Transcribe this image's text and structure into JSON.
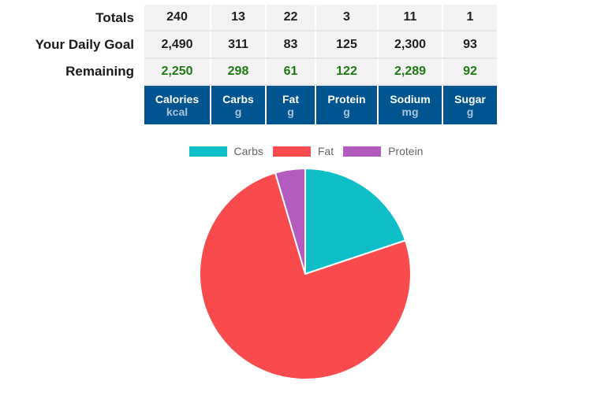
{
  "summary": {
    "rows": [
      {
        "label": "Totals",
        "values": [
          "240",
          "13",
          "22",
          "3",
          "11",
          "1"
        ]
      },
      {
        "label": "Your Daily Goal",
        "values": [
          "2,490",
          "311",
          "83",
          "125",
          "2,300",
          "93"
        ]
      },
      {
        "label": "Remaining",
        "values": [
          "2,250",
          "298",
          "61",
          "122",
          "2,289",
          "92"
        ]
      }
    ],
    "columns": [
      {
        "name": "Calories",
        "unit": "kcal"
      },
      {
        "name": "Carbs",
        "unit": "g"
      },
      {
        "name": "Fat",
        "unit": "g"
      },
      {
        "name": "Protein",
        "unit": "g"
      },
      {
        "name": "Sodium",
        "unit": "mg"
      },
      {
        "name": "Sugar",
        "unit": "g"
      }
    ],
    "colors": {
      "header_bg": "#00548f",
      "remaining_text": "#1d7a12",
      "cell_bg": "#f3f3f3"
    }
  },
  "chart_data": {
    "type": "pie",
    "title": "",
    "categories": [
      "Carbs",
      "Fat",
      "Protein"
    ],
    "values": [
      52,
      198,
      12
    ],
    "percentages": [
      19.8,
      75.6,
      4.6
    ],
    "colors": [
      "#0ebfc8",
      "#f94b4e",
      "#b45bbf"
    ],
    "legend_position": "top",
    "start_angle_deg": 0,
    "direction": "clockwise"
  }
}
